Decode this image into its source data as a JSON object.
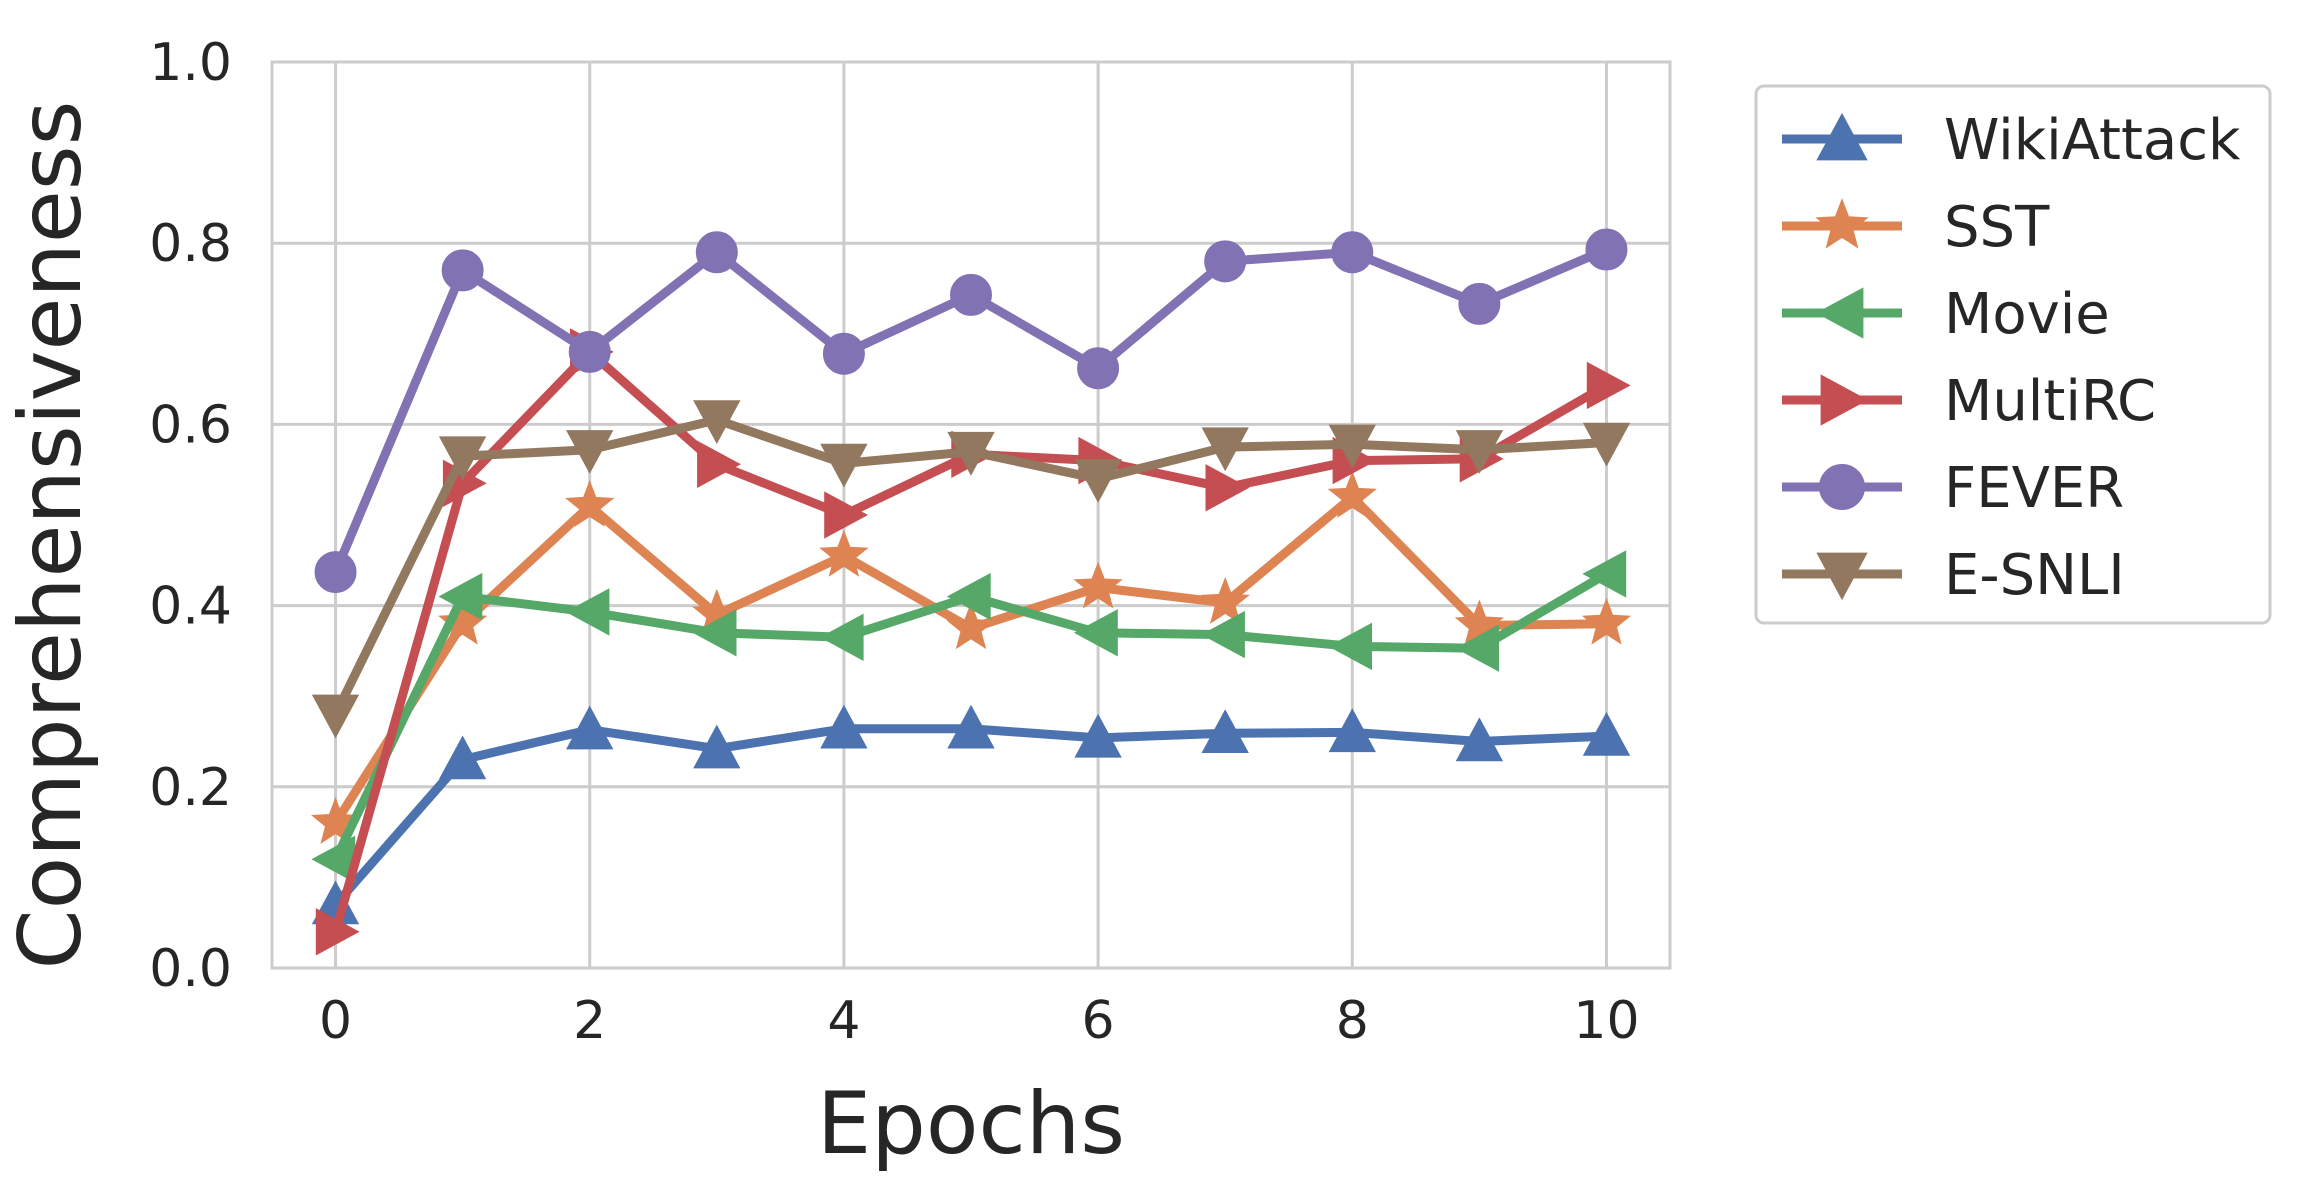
{
  "chart_data": {
    "type": "line",
    "title": "",
    "xlabel": "Epochs",
    "ylabel": "Comprehensiveness",
    "xlim": [
      -0.5,
      10.5
    ],
    "ylim": [
      0.0,
      1.0
    ],
    "x": [
      0,
      1,
      2,
      3,
      4,
      5,
      6,
      7,
      8,
      9,
      10
    ],
    "xticks": [
      0,
      2,
      4,
      6,
      8,
      10
    ],
    "xtick_labels": [
      "0",
      "2",
      "4",
      "6",
      "8",
      "10"
    ],
    "yticks": [
      0.0,
      0.2,
      0.4,
      0.6,
      0.8,
      1.0
    ],
    "ytick_labels": [
      "0.0",
      "0.2",
      "0.4",
      "0.6",
      "0.8",
      "1.0"
    ],
    "grid": true,
    "legend_position": "outside-right-top",
    "series": [
      {
        "name": "WikiAttack",
        "color": "#4c72b0",
        "marker": "triangle-up",
        "values": [
          0.07,
          0.23,
          0.263,
          0.242,
          0.264,
          0.264,
          0.254,
          0.259,
          0.26,
          0.25,
          0.256
        ]
      },
      {
        "name": "SST",
        "color": "#dd8452",
        "marker": "star",
        "values": [
          0.16,
          0.38,
          0.51,
          0.39,
          0.455,
          0.375,
          0.42,
          0.403,
          0.52,
          0.378,
          0.38
        ]
      },
      {
        "name": "Movie",
        "color": "#55a868",
        "marker": "triangle-left",
        "values": [
          0.12,
          0.41,
          0.393,
          0.37,
          0.365,
          0.41,
          0.37,
          0.368,
          0.355,
          0.353,
          0.435
        ]
      },
      {
        "name": "MultiRC",
        "color": "#c44e52",
        "marker": "triangle-right",
        "values": [
          0.04,
          0.535,
          0.68,
          0.556,
          0.5,
          0.567,
          0.56,
          0.53,
          0.56,
          0.562,
          0.643
        ]
      },
      {
        "name": "FEVER",
        "color": "#8172b3",
        "marker": "circle",
        "values": [
          0.437,
          0.77,
          0.68,
          0.79,
          0.678,
          0.743,
          0.662,
          0.78,
          0.79,
          0.733,
          0.793
        ]
      },
      {
        "name": "E-SNLI",
        "color": "#937860",
        "marker": "triangle-down",
        "values": [
          0.28,
          0.565,
          0.572,
          0.605,
          0.557,
          0.57,
          0.54,
          0.575,
          0.578,
          0.572,
          0.58
        ]
      }
    ]
  }
}
